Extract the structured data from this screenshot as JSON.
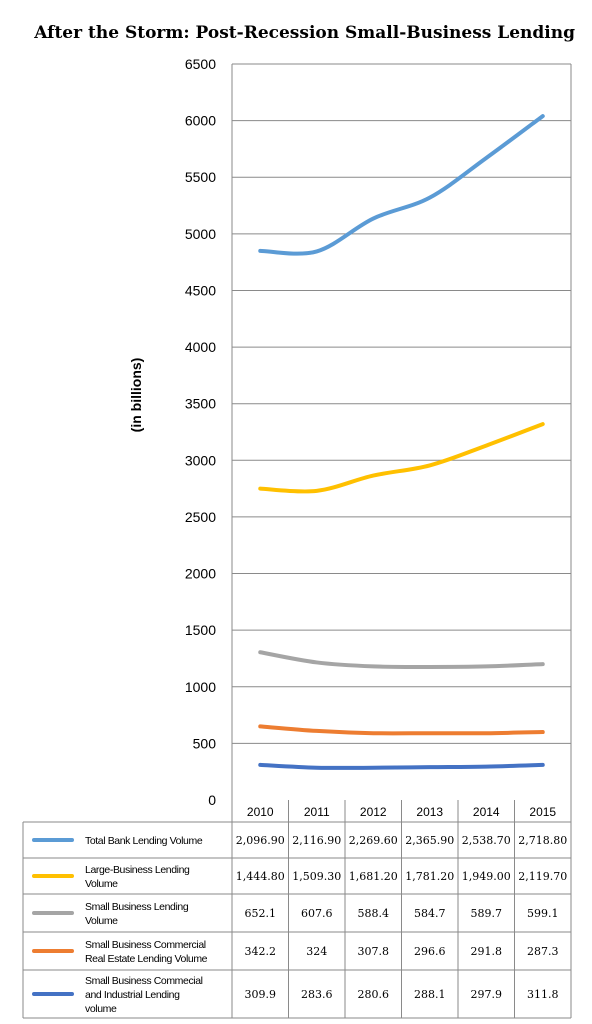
{
  "chart_data": {
    "type": "line",
    "title": "After the Storm: Post-Recession Small-Business Lending",
    "ylabel": "(in billions)",
    "ylim": [
      0,
      6500
    ],
    "yticks": [
      "0",
      "500",
      "1000",
      "1500",
      "2000",
      "2500",
      "3000",
      "3500",
      "4000",
      "4500",
      "5000",
      "5500",
      "6000",
      "6500"
    ],
    "categories": [
      "2010",
      "2011",
      "2012",
      "2013",
      "2014",
      "2015"
    ],
    "grid": true,
    "legend_position": "table-below",
    "series": [
      {
        "name_lines": [
          "Total Bank Lending Volume"
        ],
        "color": "#5b9bd5",
        "values": [
          4850,
          4845,
          5135,
          5320,
          5670,
          6040
        ],
        "table": [
          "2,096.90",
          "2,116.90",
          "2,269.60",
          "2,365.90",
          "2,538.70",
          "2,718.80"
        ]
      },
      {
        "name_lines": [
          "Large-Business Lending",
          "Volume"
        ],
        "color": "#ffc000",
        "values": [
          2750,
          2730,
          2865,
          2955,
          3130,
          3320
        ],
        "table": [
          "1,444.80",
          "1,509.30",
          "1,681.20",
          "1,781.20",
          "1,949.00",
          "2,119.70"
        ]
      },
      {
        "name_lines": [
          "Small Business Lending",
          "Volume"
        ],
        "color": "#a5a5a5",
        "values": [
          1305,
          1215,
          1180,
          1175,
          1180,
          1200
        ],
        "table": [
          "652.1",
          "607.6",
          "588.4",
          "584.7",
          "589.7",
          "599.1"
        ]
      },
      {
        "name_lines": [
          "Small Business Commercial",
          "Real Estate Lending Volume"
        ],
        "color": "#ed7d31",
        "values": [
          650,
          610,
          590,
          590,
          590,
          600
        ],
        "table": [
          "342.2",
          "324",
          "307.8",
          "296.6",
          "291.8",
          "287.3"
        ]
      },
      {
        "name_lines": [
          "Small Business Commecial",
          "and Industrial Lending",
          "volume"
        ],
        "color": "#4472c4",
        "values": [
          310,
          285,
          285,
          290,
          295,
          310
        ],
        "table": [
          "309.9",
          "283.6",
          "280.6",
          "288.1",
          "297.9",
          "311.8"
        ]
      }
    ]
  }
}
